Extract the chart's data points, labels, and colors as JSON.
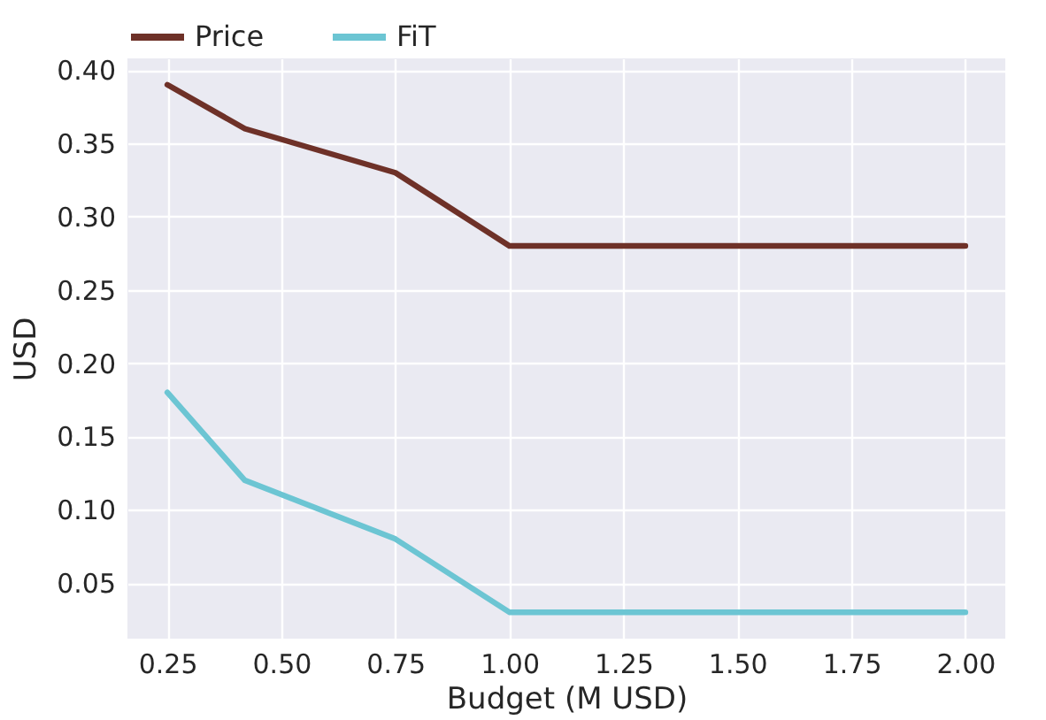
{
  "chart_data": {
    "type": "line",
    "xlabel": "Budget (M USD)",
    "ylabel": "USD",
    "x": [
      0.25,
      0.42,
      0.75,
      1.0,
      2.0
    ],
    "series": [
      {
        "name": "Price",
        "color": "#6e3128",
        "values": [
          0.39,
          0.36,
          0.33,
          0.28,
          0.28
        ]
      },
      {
        "name": "FiT",
        "color": "#6cc5d3",
        "values": [
          0.18,
          0.12,
          0.08,
          0.03,
          0.03
        ]
      }
    ],
    "xlim": [
      0.1625,
      2.0875
    ],
    "xticks": [
      0.25,
      {
        "value": 0.5,
        "label": "0.50"
      },
      0.75,
      {
        "value": 1,
        "label": "1.00"
      },
      1.25,
      {
        "value": 1.5,
        "label": "1.50"
      },
      1.75,
      {
        "value": 2,
        "label": "2.00"
      }
    ],
    "ylim": [
      0.012,
      0.408
    ],
    "yticks": [
      0.05,
      {
        "value": 0.1,
        "label": "0.10"
      },
      0.15,
      {
        "value": 0.2,
        "label": "0.20"
      },
      0.25,
      {
        "value": 0.3,
        "label": "0.30"
      },
      0.35,
      {
        "value": 0.4,
        "label": "0.40"
      }
    ],
    "grid": true,
    "legend": "top",
    "marker": "none",
    "line_style": "solid"
  }
}
